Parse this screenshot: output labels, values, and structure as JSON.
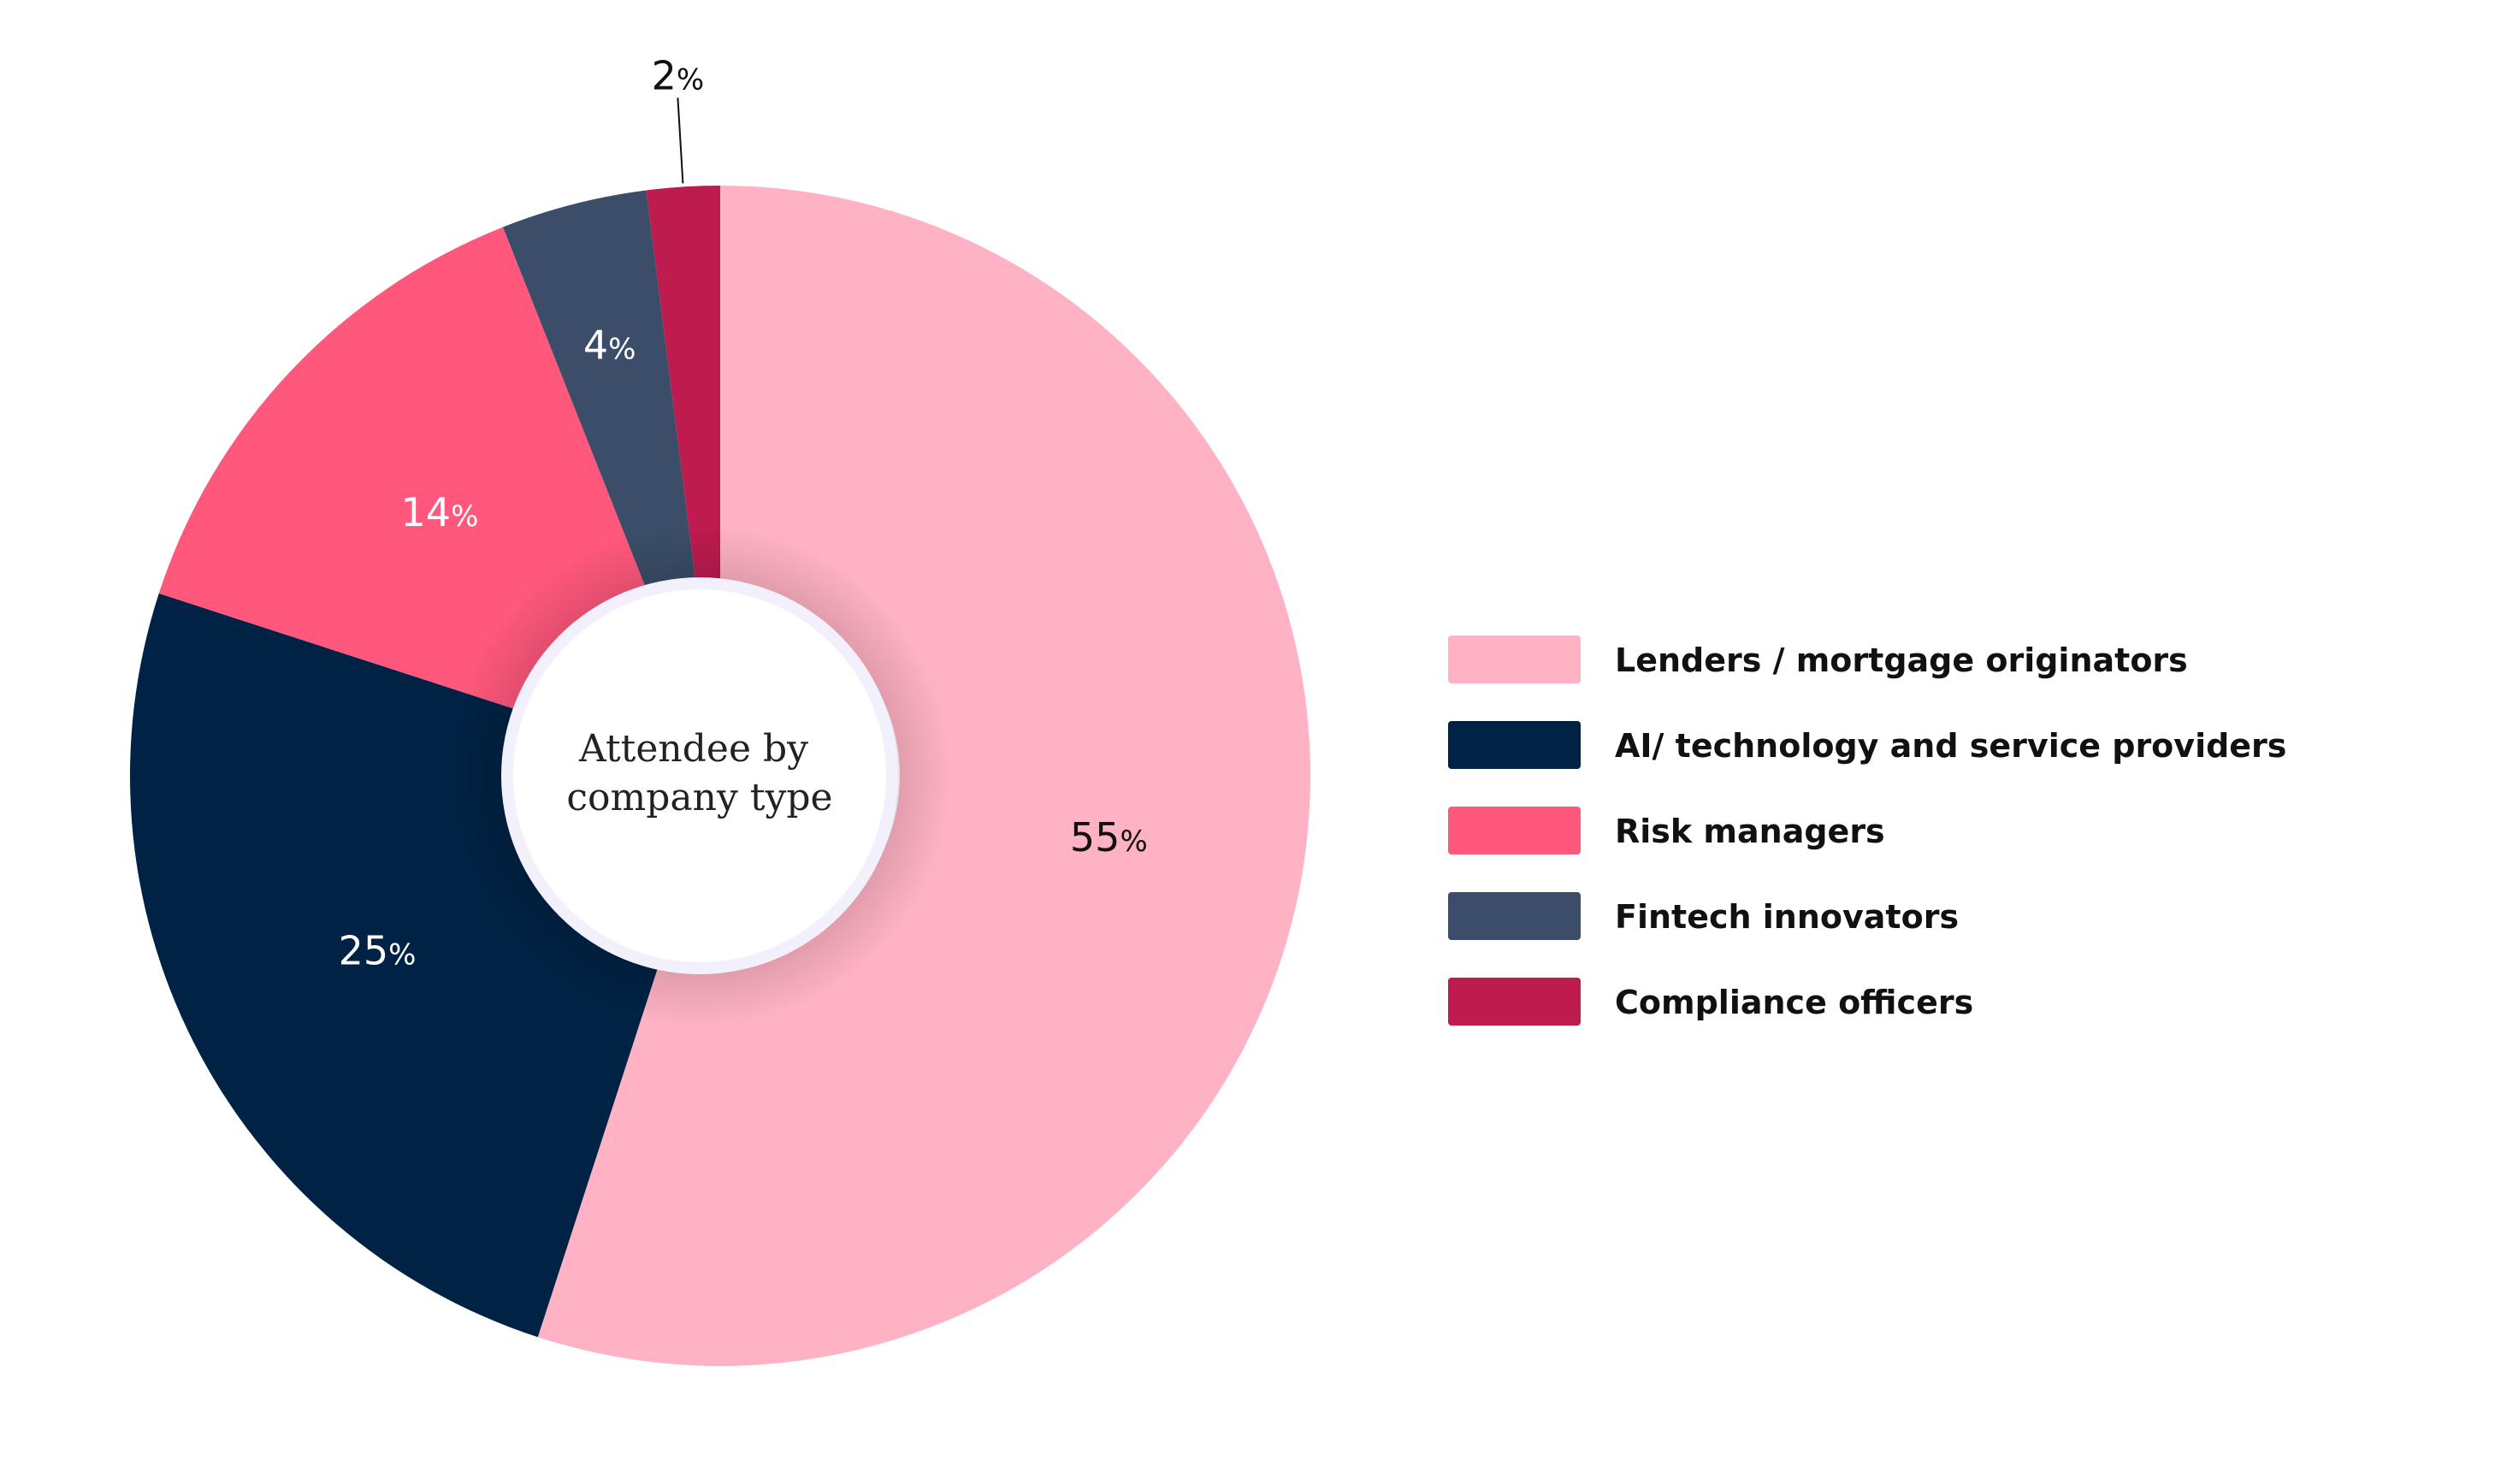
{
  "chart_data": {
    "type": "pie",
    "subtype": "donut",
    "center_label": [
      "Attendee by",
      "company type"
    ],
    "categories": [
      "Lenders / mortgage originators",
      "AI/ technology and service providers",
      "Risk managers",
      "Fintech innovators",
      "Compliance officers"
    ],
    "values": [
      55,
      25,
      14,
      4,
      2
    ],
    "value_suffix": "%",
    "colors": [
      "#FFB2C3",
      "#002244",
      "#FF587C",
      "#3B4D68",
      "#BE1B4F"
    ],
    "label_colors": [
      "#111111",
      "#ffffff",
      "#ffffff",
      "#ffffff",
      "#111111"
    ],
    "legend_position": "right",
    "start_angle_deg": 0,
    "direction": "clockwise"
  }
}
